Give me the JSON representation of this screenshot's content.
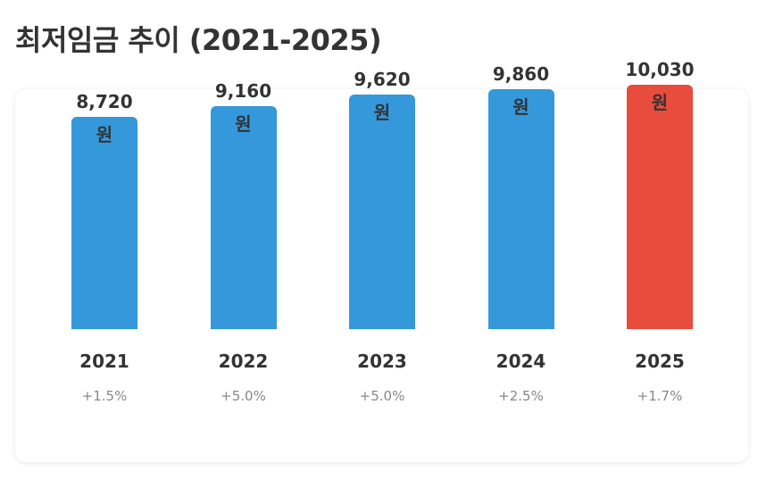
{
  "title": "최저임금 추이 (2021-2025)",
  "chart_data": {
    "type": "bar",
    "title": "최저임금 추이 (2021-2025)",
    "categories": [
      "2021",
      "2022",
      "2023",
      "2024",
      "2025"
    ],
    "values": [
      8720,
      9160,
      9620,
      9860,
      10030
    ],
    "value_labels": [
      "8,720",
      "9,160",
      "9,620",
      "9,860",
      "10,030"
    ],
    "unit": "원",
    "changes": [
      "+1.5%",
      "+5.0%",
      "+5.0%",
      "+2.5%",
      "+1.7%"
    ],
    "colors": [
      "#3498db",
      "#3498db",
      "#3498db",
      "#3498db",
      "#e74c3c"
    ],
    "grid": false,
    "legend": "none"
  }
}
